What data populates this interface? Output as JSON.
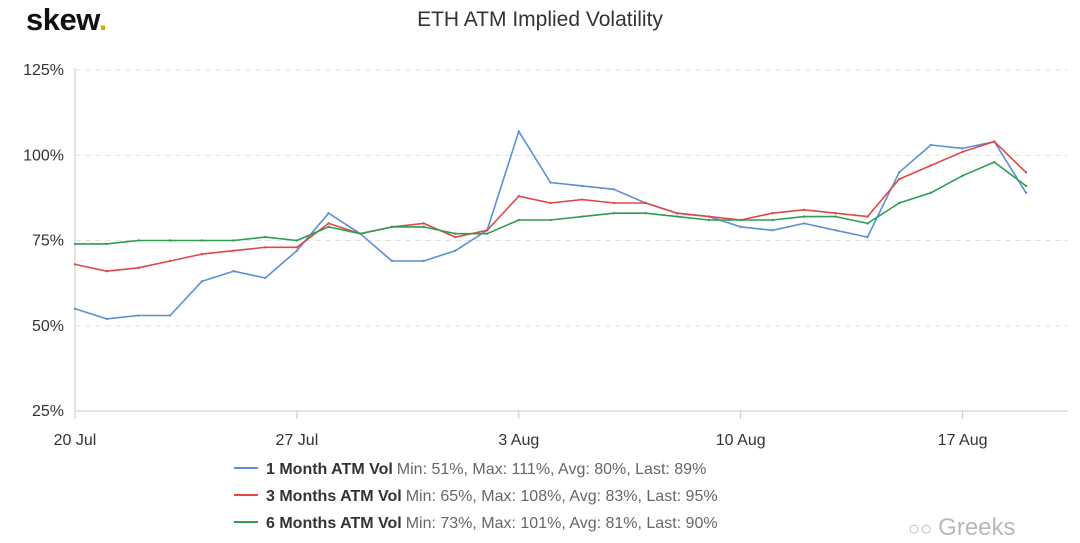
{
  "logo": "skew",
  "watermark": "Greeks",
  "chart_data": {
    "type": "line",
    "title": "ETH ATM Implied Volatility",
    "x_ticks": [
      "20 Jul",
      "27 Jul",
      "3 Aug",
      "10 Aug",
      "17 Aug"
    ],
    "y_ticks": [
      "125%",
      "100%",
      "75%",
      "50%",
      "25%"
    ],
    "ylim": [
      25,
      125
    ],
    "grid": true,
    "legend_position": "bottom",
    "x": [
      "20 Jul",
      "21 Jul",
      "22 Jul",
      "23 Jul",
      "24 Jul",
      "25 Jul",
      "26 Jul",
      "27 Jul",
      "28 Jul",
      "29 Jul",
      "30 Jul",
      "31 Jul",
      "1 Aug",
      "2 Aug",
      "3 Aug",
      "4 Aug",
      "5 Aug",
      "6 Aug",
      "7 Aug",
      "8 Aug",
      "9 Aug",
      "10 Aug",
      "11 Aug",
      "12 Aug",
      "13 Aug",
      "14 Aug",
      "15 Aug",
      "16 Aug",
      "17 Aug",
      "18 Aug",
      "19 Aug"
    ],
    "series": [
      {
        "name": "1 Month ATM Vol",
        "color": "#5b8fd6",
        "stats": "Min: 51%, Max: 111%, Avg: 80%, Last: 89%",
        "values": [
          55,
          52,
          53,
          53,
          63,
          66,
          64,
          72,
          83,
          77,
          69,
          69,
          72,
          78,
          107,
          92,
          91,
          90,
          86,
          83,
          82,
          79,
          78,
          80,
          78,
          76,
          95,
          103,
          102,
          104,
          89
        ]
      },
      {
        "name": "3 Months ATM Vol",
        "color": "#e04848",
        "stats": "Min: 65%, Max: 108%, Avg: 83%, Last: 95%",
        "values": [
          68,
          66,
          67,
          69,
          71,
          72,
          73,
          73,
          80,
          77,
          79,
          80,
          76,
          78,
          88,
          86,
          87,
          86,
          86,
          83,
          82,
          81,
          83,
          84,
          83,
          82,
          93,
          97,
          101,
          104,
          95
        ]
      },
      {
        "name": "6 Months ATM Vol",
        "color": "#2e9e50",
        "stats": "Min: 73%, Max: 101%, Avg: 81%, Last: 90%",
        "values": [
          74,
          74,
          75,
          75,
          75,
          75,
          76,
          75,
          79,
          77,
          79,
          79,
          77,
          77,
          81,
          81,
          82,
          83,
          83,
          82,
          81,
          81,
          81,
          82,
          82,
          80,
          86,
          89,
          94,
          98,
          91
        ]
      }
    ]
  }
}
